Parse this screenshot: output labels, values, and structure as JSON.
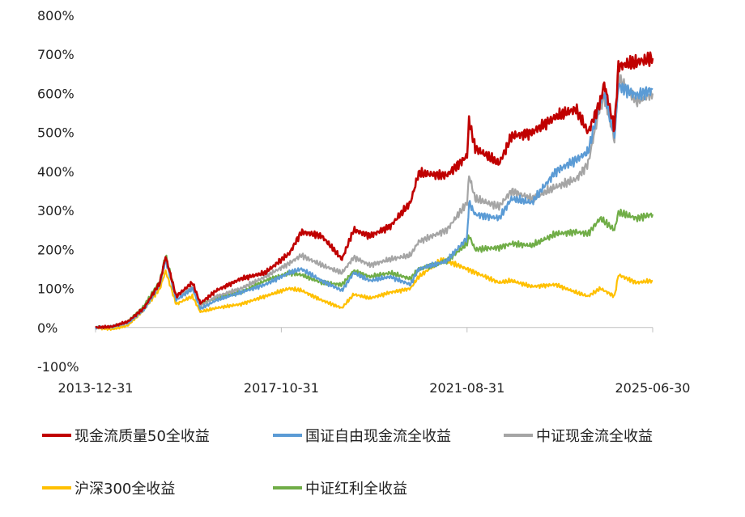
{
  "chart_data": {
    "type": "line",
    "title": "",
    "xlabel": "",
    "ylabel": "",
    "x_start": "2013-12-31",
    "x_end": "2025-06-30",
    "xticks": [
      "2013-12-31",
      "2017-10-31",
      "2021-08-31",
      "2025-06-30"
    ],
    "ylim": [
      -100,
      800
    ],
    "yticks": [
      -100,
      0,
      100,
      200,
      300,
      400,
      500,
      600,
      700,
      800
    ],
    "ytick_labels": [
      "-100%",
      "0%",
      "100%",
      "200%",
      "300%",
      "400%",
      "500%",
      "600%",
      "700%",
      "800%"
    ],
    "grid": false,
    "legend_position": "bottom",
    "series": [
      {
        "name": "现金流质量50全收益",
        "color": "#c00000",
        "points": [
          [
            "2013-12-31",
            0
          ],
          [
            "2014-04-30",
            2
          ],
          [
            "2014-08-31",
            15
          ],
          [
            "2014-12-31",
            50
          ],
          [
            "2015-04-30",
            115
          ],
          [
            "2015-06-12",
            182
          ],
          [
            "2015-08-31",
            80
          ],
          [
            "2015-12-31",
            115
          ],
          [
            "2016-02-29",
            62
          ],
          [
            "2016-06-30",
            95
          ],
          [
            "2016-12-31",
            125
          ],
          [
            "2017-06-30",
            140
          ],
          [
            "2017-12-31",
            190
          ],
          [
            "2018-03-31",
            245
          ],
          [
            "2018-08-31",
            235
          ],
          [
            "2019-01-31",
            175
          ],
          [
            "2019-04-30",
            250
          ],
          [
            "2019-08-31",
            235
          ],
          [
            "2020-01-31",
            260
          ],
          [
            "2020-06-30",
            320
          ],
          [
            "2020-08-31",
            395
          ],
          [
            "2021-03-31",
            390
          ],
          [
            "2021-08-31",
            440
          ],
          [
            "2021-09-15",
            530
          ],
          [
            "2021-10-31",
            460
          ],
          [
            "2022-04-30",
            420
          ],
          [
            "2022-07-31",
            490
          ],
          [
            "2022-12-31",
            500
          ],
          [
            "2023-06-30",
            540
          ],
          [
            "2023-11-30",
            560
          ],
          [
            "2024-02-29",
            500
          ],
          [
            "2024-05-31",
            580
          ],
          [
            "2024-06-30",
            625
          ],
          [
            "2024-09-15",
            510
          ],
          [
            "2024-10-15",
            670
          ],
          [
            "2025-02-28",
            680
          ],
          [
            "2025-06-30",
            690
          ]
        ]
      },
      {
        "name": "国证自由现金流全收益",
        "color": "#5b9bd5",
        "points": [
          [
            "2013-12-31",
            0
          ],
          [
            "2014-04-30",
            2
          ],
          [
            "2014-08-31",
            12
          ],
          [
            "2014-12-31",
            45
          ],
          [
            "2015-04-30",
            110
          ],
          [
            "2015-06-12",
            175
          ],
          [
            "2015-08-31",
            70
          ],
          [
            "2015-12-31",
            100
          ],
          [
            "2016-02-29",
            48
          ],
          [
            "2016-06-30",
            70
          ],
          [
            "2016-12-31",
            90
          ],
          [
            "2017-06-30",
            110
          ],
          [
            "2017-12-31",
            140
          ],
          [
            "2018-03-31",
            150
          ],
          [
            "2018-08-31",
            120
          ],
          [
            "2019-01-31",
            95
          ],
          [
            "2019-04-30",
            140
          ],
          [
            "2019-08-31",
            120
          ],
          [
            "2020-01-31",
            130
          ],
          [
            "2020-06-30",
            110
          ],
          [
            "2020-08-31",
            150
          ],
          [
            "2021-03-31",
            170
          ],
          [
            "2021-08-31",
            230
          ],
          [
            "2021-09-15",
            320
          ],
          [
            "2021-10-31",
            290
          ],
          [
            "2022-04-30",
            280
          ],
          [
            "2022-07-31",
            330
          ],
          [
            "2022-12-31",
            320
          ],
          [
            "2023-06-30",
            400
          ],
          [
            "2023-11-30",
            430
          ],
          [
            "2024-02-29",
            450
          ],
          [
            "2024-05-31",
            580
          ],
          [
            "2024-06-30",
            600
          ],
          [
            "2024-09-15",
            490
          ],
          [
            "2024-10-15",
            620
          ],
          [
            "2025-02-28",
            595
          ],
          [
            "2025-06-30",
            610
          ]
        ]
      },
      {
        "name": "中证现金流全收益",
        "color": "#a5a5a5",
        "points": [
          [
            "2013-12-31",
            0
          ],
          [
            "2014-04-30",
            2
          ],
          [
            "2014-08-31",
            12
          ],
          [
            "2014-12-31",
            48
          ],
          [
            "2015-04-30",
            115
          ],
          [
            "2015-06-12",
            180
          ],
          [
            "2015-08-31",
            78
          ],
          [
            "2015-12-31",
            105
          ],
          [
            "2016-02-29",
            55
          ],
          [
            "2016-06-30",
            80
          ],
          [
            "2016-12-31",
            100
          ],
          [
            "2017-06-30",
            130
          ],
          [
            "2017-12-31",
            165
          ],
          [
            "2018-03-31",
            185
          ],
          [
            "2018-08-31",
            160
          ],
          [
            "2019-01-31",
            140
          ],
          [
            "2019-04-30",
            180
          ],
          [
            "2019-08-31",
            160
          ],
          [
            "2020-01-31",
            175
          ],
          [
            "2020-06-30",
            185
          ],
          [
            "2020-08-31",
            220
          ],
          [
            "2021-03-31",
            250
          ],
          [
            "2021-08-31",
            320
          ],
          [
            "2021-09-15",
            390
          ],
          [
            "2021-10-31",
            330
          ],
          [
            "2022-04-30",
            310
          ],
          [
            "2022-07-31",
            350
          ],
          [
            "2022-12-31",
            330
          ],
          [
            "2023-06-30",
            360
          ],
          [
            "2023-11-30",
            380
          ],
          [
            "2024-02-29",
            420
          ],
          [
            "2024-05-31",
            570
          ],
          [
            "2024-06-30",
            590
          ],
          [
            "2024-09-15",
            480
          ],
          [
            "2024-10-15",
            640
          ],
          [
            "2025-02-28",
            580
          ],
          [
            "2025-06-30",
            600
          ]
        ]
      },
      {
        "name": "沪深300全收益",
        "color": "#ffc000",
        "points": [
          [
            "2013-12-31",
            0
          ],
          [
            "2014-04-30",
            -5
          ],
          [
            "2014-08-31",
            5
          ],
          [
            "2014-12-31",
            45
          ],
          [
            "2015-04-30",
            100
          ],
          [
            "2015-06-12",
            145
          ],
          [
            "2015-08-31",
            60
          ],
          [
            "2015-12-31",
            80
          ],
          [
            "2016-02-29",
            40
          ],
          [
            "2016-06-30",
            50
          ],
          [
            "2016-12-31",
            60
          ],
          [
            "2017-06-30",
            80
          ],
          [
            "2017-12-31",
            100
          ],
          [
            "2018-03-31",
            95
          ],
          [
            "2018-08-31",
            70
          ],
          [
            "2019-01-31",
            50
          ],
          [
            "2019-04-30",
            85
          ],
          [
            "2019-08-31",
            75
          ],
          [
            "2020-01-31",
            90
          ],
          [
            "2020-06-30",
            100
          ],
          [
            "2020-08-31",
            130
          ],
          [
            "2021-02-28",
            175
          ],
          [
            "2021-08-31",
            150
          ],
          [
            "2022-04-30",
            115
          ],
          [
            "2022-07-31",
            120
          ],
          [
            "2022-12-31",
            105
          ],
          [
            "2023-06-30",
            110
          ],
          [
            "2023-11-30",
            90
          ],
          [
            "2024-02-29",
            80
          ],
          [
            "2024-05-31",
            100
          ],
          [
            "2024-09-15",
            80
          ],
          [
            "2024-10-15",
            135
          ],
          [
            "2025-02-28",
            115
          ],
          [
            "2025-06-30",
            120
          ]
        ]
      },
      {
        "name": "中证红利全收益",
        "color": "#70ad47",
        "points": [
          [
            "2013-12-31",
            0
          ],
          [
            "2014-04-30",
            2
          ],
          [
            "2014-08-31",
            15
          ],
          [
            "2014-12-31",
            55
          ],
          [
            "2015-04-30",
            120
          ],
          [
            "2015-06-12",
            185
          ],
          [
            "2015-08-31",
            80
          ],
          [
            "2015-12-31",
            100
          ],
          [
            "2016-02-29",
            60
          ],
          [
            "2016-06-30",
            75
          ],
          [
            "2016-12-31",
            90
          ],
          [
            "2017-06-30",
            120
          ],
          [
            "2017-12-31",
            140
          ],
          [
            "2018-03-31",
            135
          ],
          [
            "2018-08-31",
            115
          ],
          [
            "2019-01-31",
            110
          ],
          [
            "2019-04-30",
            145
          ],
          [
            "2019-08-31",
            130
          ],
          [
            "2020-01-31",
            140
          ],
          [
            "2020-06-30",
            125
          ],
          [
            "2020-08-31",
            150
          ],
          [
            "2021-03-31",
            170
          ],
          [
            "2021-08-31",
            215
          ],
          [
            "2021-09-15",
            235
          ],
          [
            "2021-10-31",
            200
          ],
          [
            "2022-04-30",
            205
          ],
          [
            "2022-07-31",
            215
          ],
          [
            "2022-12-31",
            210
          ],
          [
            "2023-06-30",
            240
          ],
          [
            "2023-11-30",
            245
          ],
          [
            "2024-02-29",
            240
          ],
          [
            "2024-05-31",
            280
          ],
          [
            "2024-09-15",
            250
          ],
          [
            "2024-10-15",
            295
          ],
          [
            "2025-02-28",
            280
          ],
          [
            "2025-06-30",
            290
          ]
        ]
      }
    ]
  }
}
